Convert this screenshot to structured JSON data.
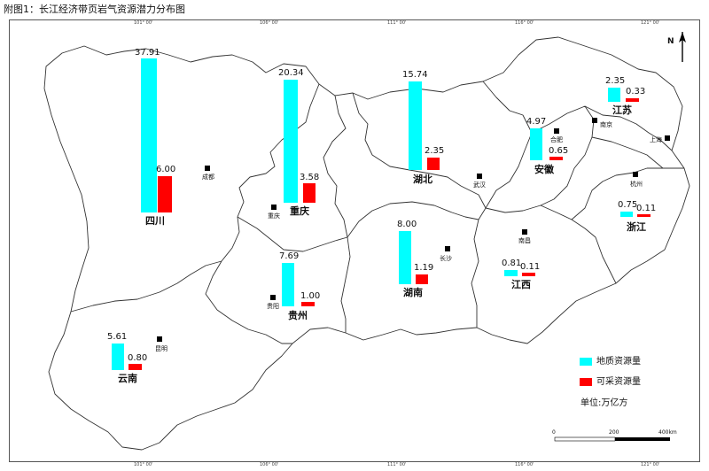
{
  "title": "附图1：长江经济带页岩气资源潜力分布图",
  "legend": {
    "geological_label": "地质资源量",
    "recoverable_label": "可采资源量",
    "unit_label": "单位:万亿方",
    "geological_color": "#00ffff",
    "recoverable_color": "#ff0000"
  },
  "scale": {
    "zero": "0",
    "mid": "200",
    "end": "400km"
  },
  "north_label": "N",
  "provinces": [
    {
      "name": "四川",
      "geological": "37.91",
      "recoverable": "6.00"
    },
    {
      "name": "重庆",
      "geological": "20.34",
      "recoverable": "3.58"
    },
    {
      "name": "湖北",
      "geological": "15.74",
      "recoverable": "2.35"
    },
    {
      "name": "安徽",
      "geological": "4.97",
      "recoverable": "0.65"
    },
    {
      "name": "江苏",
      "geological": "2.35",
      "recoverable": "0.33"
    },
    {
      "name": "浙江",
      "geological": "0.75",
      "recoverable": "0.11"
    },
    {
      "name": "湖南",
      "geological": "8.00",
      "recoverable": "1.19"
    },
    {
      "name": "江西",
      "geological": "0.81",
      "recoverable": "0.11"
    },
    {
      "name": "贵州",
      "geological": "7.69",
      "recoverable": "1.00"
    },
    {
      "name": "云南",
      "geological": "5.61",
      "recoverable": "0.80"
    }
  ],
  "cities": [
    "成都",
    "重庆",
    "武汉",
    "合肥",
    "南京",
    "上海",
    "杭州",
    "长沙",
    "南昌",
    "贵阳",
    "昆明"
  ],
  "ticks": [
    "101° 00'",
    "106° 00'",
    "111° 00'",
    "116° 00'",
    "121° 00'"
  ]
}
